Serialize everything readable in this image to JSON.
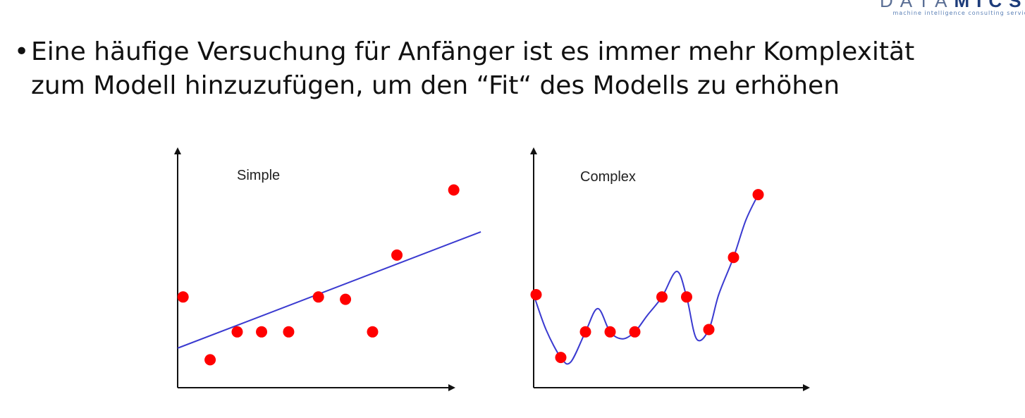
{
  "logo": {
    "word_light": "DATA",
    "word_bold": "MIC",
    "word_tail": "S",
    "tagline": "machine intelligence consulting servic"
  },
  "bullet": {
    "symbol": "•",
    "lines": [
      "Eine häufige Versuchung für Anfänger ist es immer mehr Komplexität",
      "zum Modell hinzuzufügen, um den “Fit“ des Modells zu erhöhen"
    ]
  },
  "colors": {
    "point": "#ff0000",
    "fit_line": "#3a3ad0",
    "axis": "#111111"
  },
  "chart_data": [
    {
      "type": "scatter",
      "title": "Simple",
      "xlabel": "",
      "ylabel": "",
      "xlim": [
        0,
        10
      ],
      "ylim": [
        0,
        10
      ],
      "grid": false,
      "points": [
        {
          "x": 0.2,
          "y": 3.9
        },
        {
          "x": 1.2,
          "y": 1.2
        },
        {
          "x": 2.2,
          "y": 2.4
        },
        {
          "x": 3.1,
          "y": 2.4
        },
        {
          "x": 4.1,
          "y": 2.4
        },
        {
          "x": 5.2,
          "y": 3.9
        },
        {
          "x": 6.2,
          "y": 3.8
        },
        {
          "x": 7.2,
          "y": 2.4
        },
        {
          "x": 8.1,
          "y": 5.7
        },
        {
          "x": 10.2,
          "y": 8.5
        }
      ],
      "fit": {
        "kind": "linear",
        "from": {
          "x": 0.0,
          "y": 1.7
        },
        "to": {
          "x": 11.2,
          "y": 6.7
        }
      }
    },
    {
      "type": "scatter",
      "title": "Complex",
      "xlabel": "",
      "ylabel": "",
      "xlim": [
        0,
        10
      ],
      "ylim": [
        0,
        10
      ],
      "grid": false,
      "points": [
        {
          "x": 0.1,
          "y": 4.0
        },
        {
          "x": 1.1,
          "y": 1.3
        },
        {
          "x": 2.1,
          "y": 2.4
        },
        {
          "x": 3.1,
          "y": 2.4
        },
        {
          "x": 4.1,
          "y": 2.4
        },
        {
          "x": 5.2,
          "y": 3.9
        },
        {
          "x": 6.2,
          "y": 3.9
        },
        {
          "x": 7.1,
          "y": 2.5
        },
        {
          "x": 8.1,
          "y": 5.6
        },
        {
          "x": 9.1,
          "y": 8.3
        }
      ],
      "fit": {
        "kind": "interpolating-curve",
        "path": [
          {
            "x": 0.0,
            "y": 4.0
          },
          {
            "x": 0.5,
            "y": 2.5
          },
          {
            "x": 1.1,
            "y": 1.3
          },
          {
            "x": 1.5,
            "y": 1.1
          },
          {
            "x": 2.1,
            "y": 2.4
          },
          {
            "x": 2.6,
            "y": 3.4
          },
          {
            "x": 3.1,
            "y": 2.4
          },
          {
            "x": 3.6,
            "y": 2.1
          },
          {
            "x": 4.1,
            "y": 2.4
          },
          {
            "x": 4.6,
            "y": 3.1
          },
          {
            "x": 5.2,
            "y": 3.9
          },
          {
            "x": 5.8,
            "y": 5.0
          },
          {
            "x": 6.2,
            "y": 3.9
          },
          {
            "x": 6.6,
            "y": 2.1
          },
          {
            "x": 7.1,
            "y": 2.5
          },
          {
            "x": 7.5,
            "y": 4.0
          },
          {
            "x": 8.1,
            "y": 5.6
          },
          {
            "x": 8.6,
            "y": 7.2
          },
          {
            "x": 9.1,
            "y": 8.3
          }
        ]
      }
    }
  ]
}
